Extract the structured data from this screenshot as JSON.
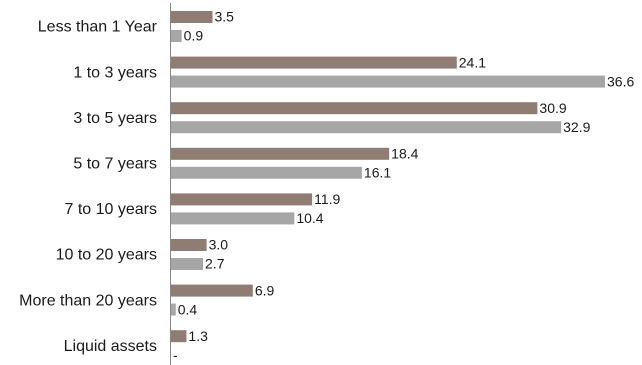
{
  "chart_data": {
    "type": "bar",
    "orientation": "horizontal",
    "title": "",
    "xlabel": "",
    "ylabel": "",
    "grid": false,
    "legend": "none",
    "xlim": [
      0,
      37
    ],
    "categories": [
      "Less than 1 Year",
      "1 to 3 years",
      "3 to 5 years",
      "5 to 7 years",
      "7 to 10 years",
      "10 to 20 years",
      "More than 20 years",
      "Liquid assets"
    ],
    "series": [
      {
        "color": "#8f7d74",
        "values": [
          3.5,
          24.1,
          30.9,
          18.4,
          11.9,
          3.0,
          6.9,
          1.3
        ],
        "labels": [
          "3.5",
          "24.1",
          "30.9",
          "18.4",
          "11.9",
          "3.0",
          "6.9",
          "1.3"
        ]
      },
      {
        "color": "#a6a6a6",
        "values": [
          0.9,
          36.6,
          32.9,
          16.1,
          10.4,
          2.7,
          0.4,
          null
        ],
        "labels": [
          "0.9",
          "36.6",
          "32.9",
          "16.1",
          "10.4",
          "2.7",
          "0.4",
          "-"
        ]
      }
    ],
    "axis_color": "#888888"
  }
}
